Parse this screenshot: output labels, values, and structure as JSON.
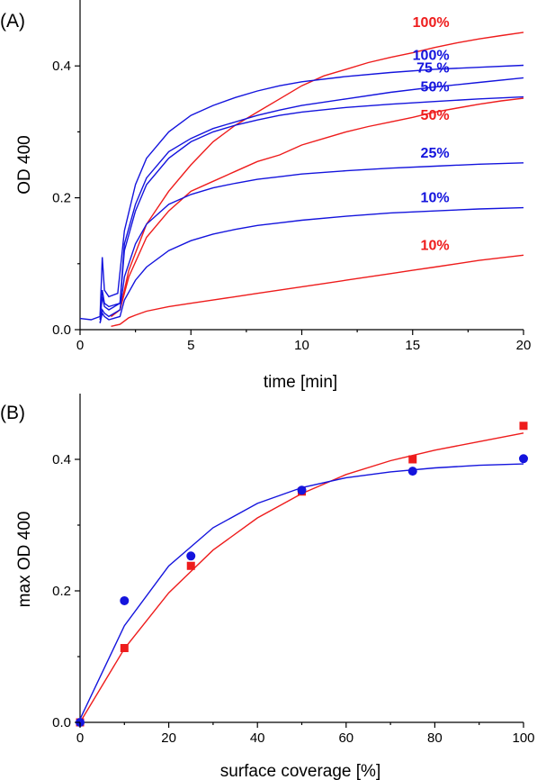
{
  "chart_data": [
    {
      "panel_label": "(A)",
      "type": "line",
      "xlabel": "time [min]",
      "ylabel": "OD 400",
      "xlim": [
        0,
        20
      ],
      "ylim": [
        0,
        0.5
      ],
      "xticks": [
        0,
        5,
        10,
        15,
        20
      ],
      "yticks": [
        0.0,
        0.2,
        0.4
      ],
      "ytick_labels": [
        "0.0",
        "0.2",
        "0.4"
      ],
      "series": [
        {
          "label": "100%",
          "color": "#ee1c1c",
          "label_pos": [
            16.9,
            0.451
          ],
          "x": [
            1.4,
            1.8,
            2.2,
            3,
            4,
            5,
            6,
            7,
            8,
            9,
            10,
            11,
            12,
            13,
            14,
            15,
            16,
            17,
            18,
            19,
            20
          ],
          "y": [
            0.02,
            0.03,
            0.09,
            0.16,
            0.21,
            0.25,
            0.285,
            0.31,
            0.33,
            0.35,
            0.37,
            0.385,
            0.395,
            0.405,
            0.413,
            0.42,
            0.428,
            0.435,
            0.441,
            0.446,
            0.451
          ]
        },
        {
          "label": "100%",
          "color": "#1414dd",
          "label_pos": [
            16.9,
            0.401
          ],
          "x": [
            0,
            0.5,
            0.9,
            1.0,
            1.1,
            1.3,
            1.7,
            2.0,
            2.5,
            3,
            4,
            5,
            6,
            7,
            8,
            9,
            10,
            12,
            14,
            16,
            18,
            20
          ],
          "y": [
            0.017,
            0.015,
            0.02,
            0.11,
            0.06,
            0.05,
            0.055,
            0.15,
            0.22,
            0.26,
            0.3,
            0.325,
            0.34,
            0.352,
            0.362,
            0.37,
            0.376,
            0.384,
            0.39,
            0.395,
            0.398,
            0.401
          ]
        },
        {
          "label": "75 %",
          "color": "#1414dd",
          "label_pos": [
            16.9,
            0.382
          ],
          "x": [
            0.9,
            1.0,
            1.1,
            1.3,
            1.8,
            2.0,
            2.5,
            3,
            4,
            5,
            6,
            7,
            8,
            9,
            10,
            12,
            14,
            16,
            18,
            20
          ],
          "y": [
            0.02,
            0.06,
            0.04,
            0.035,
            0.04,
            0.13,
            0.19,
            0.23,
            0.27,
            0.29,
            0.305,
            0.315,
            0.325,
            0.333,
            0.34,
            0.35,
            0.36,
            0.368,
            0.375,
            0.382
          ]
        },
        {
          "label": "50%",
          "color": "#1414dd",
          "label_pos": [
            16.9,
            0.353
          ],
          "x": [
            0.9,
            1.0,
            1.1,
            1.3,
            1.8,
            2.0,
            2.5,
            3,
            4,
            5,
            6,
            7,
            8,
            9,
            10,
            12,
            14,
            16,
            18,
            20
          ],
          "y": [
            0.015,
            0.05,
            0.035,
            0.03,
            0.04,
            0.12,
            0.18,
            0.22,
            0.26,
            0.285,
            0.3,
            0.31,
            0.318,
            0.325,
            0.33,
            0.337,
            0.342,
            0.346,
            0.35,
            0.353
          ]
        },
        {
          "label": "50%",
          "color": "#ee1c1c",
          "label_pos": [
            16.9,
            0.351
          ],
          "x": [
            1.4,
            1.8,
            2.2,
            3,
            4,
            5,
            6,
            7,
            8,
            9,
            10,
            11,
            12,
            13,
            14,
            15,
            16,
            17,
            18,
            19,
            20
          ],
          "y": [
            0.02,
            0.03,
            0.08,
            0.14,
            0.18,
            0.21,
            0.225,
            0.24,
            0.255,
            0.265,
            0.28,
            0.29,
            0.3,
            0.308,
            0.315,
            0.322,
            0.33,
            0.336,
            0.342,
            0.347,
            0.351
          ]
        },
        {
          "label": "25%",
          "color": "#1414dd",
          "label_pos": [
            16.9,
            0.253
          ],
          "x": [
            0.9,
            1.0,
            1.1,
            1.3,
            1.8,
            2.0,
            2.5,
            3,
            4,
            5,
            6,
            7,
            8,
            9,
            10,
            12,
            14,
            16,
            18,
            20
          ],
          "y": [
            0.01,
            0.03,
            0.025,
            0.02,
            0.03,
            0.08,
            0.13,
            0.16,
            0.19,
            0.205,
            0.215,
            0.222,
            0.228,
            0.232,
            0.236,
            0.241,
            0.245,
            0.248,
            0.251,
            0.253
          ]
        },
        {
          "label": "10%",
          "color": "#1414dd",
          "label_pos": [
            16.9,
            0.185
          ],
          "x": [
            0.9,
            1.0,
            1.1,
            1.3,
            1.8,
            2.0,
            2.5,
            3,
            4,
            5,
            6,
            7,
            8,
            9,
            10,
            12,
            14,
            16,
            18,
            20
          ],
          "y": [
            0.01,
            0.025,
            0.02,
            0.015,
            0.02,
            0.045,
            0.075,
            0.095,
            0.12,
            0.135,
            0.145,
            0.152,
            0.158,
            0.162,
            0.166,
            0.172,
            0.177,
            0.18,
            0.183,
            0.185
          ]
        },
        {
          "label": "10%",
          "color": "#ee1c1c",
          "label_pos": [
            16.9,
            0.113
          ],
          "x": [
            1.4,
            1.8,
            2.2,
            2.5,
            3,
            4,
            5,
            6,
            7,
            8,
            9,
            10,
            11,
            12,
            13,
            14,
            15,
            16,
            17,
            18,
            19,
            20
          ],
          "y": [
            0.005,
            0.008,
            0.018,
            0.022,
            0.028,
            0.035,
            0.04,
            0.045,
            0.05,
            0.055,
            0.06,
            0.065,
            0.07,
            0.075,
            0.08,
            0.085,
            0.09,
            0.095,
            0.1,
            0.105,
            0.109,
            0.113
          ]
        }
      ]
    },
    {
      "panel_label": "(B)",
      "type": "scatter",
      "xlabel": "surface coverage [%]",
      "ylabel": "max OD 400",
      "xlim": [
        0,
        100
      ],
      "ylim": [
        0,
        0.5
      ],
      "xticks": [
        0,
        20,
        40,
        60,
        80,
        100
      ],
      "yticks": [
        0.0,
        0.2,
        0.4
      ],
      "ytick_labels": [
        "0.0",
        "0.2",
        "0.4"
      ],
      "series": [
        {
          "marker": "square",
          "color": "#ee1c1c",
          "x": [
            0,
            10,
            25,
            50,
            75,
            100
          ],
          "y": [
            0.0,
            0.113,
            0.238,
            0.351,
            0.4,
            0.451
          ],
          "fit_x": [
            0,
            10,
            20,
            30,
            40,
            50,
            60,
            70,
            80,
            90,
            100
          ],
          "fit_y": [
            0.0,
            0.112,
            0.197,
            0.262,
            0.311,
            0.348,
            0.377,
            0.398,
            0.414,
            0.427,
            0.44
          ]
        },
        {
          "marker": "circle",
          "color": "#1414dd",
          "x": [
            0,
            10,
            25,
            50,
            75,
            100
          ],
          "y": [
            0.0,
            0.185,
            0.253,
            0.353,
            0.382,
            0.401
          ],
          "fit_x": [
            0,
            10,
            20,
            30,
            40,
            50,
            60,
            70,
            80,
            90,
            100
          ],
          "fit_y": [
            0.005,
            0.147,
            0.238,
            0.296,
            0.333,
            0.357,
            0.372,
            0.381,
            0.387,
            0.391,
            0.393
          ]
        }
      ]
    }
  ]
}
